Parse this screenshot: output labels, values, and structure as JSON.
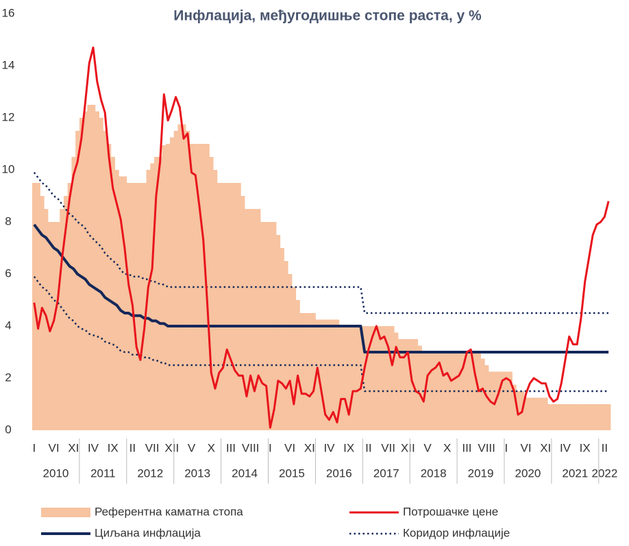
{
  "chart_data": {
    "type": "combo",
    "title": "Инфлација, међугодишње стопе раста, у %",
    "categories": [
      "I",
      null,
      null,
      null,
      null,
      "VI",
      null,
      null,
      null,
      null,
      "XI",
      null,
      null,
      null,
      null,
      "IV",
      null,
      null,
      null,
      null,
      "IX",
      null,
      null,
      null,
      null,
      "II",
      null,
      null,
      null,
      null,
      "VII",
      null,
      null,
      null,
      null,
      "XII",
      null,
      null,
      null,
      null,
      "V",
      null,
      null,
      null,
      null,
      "X",
      null,
      null,
      null,
      null,
      "III",
      null,
      null,
      null,
      null,
      "VIII",
      null,
      null,
      null,
      null,
      "I",
      null,
      null,
      null,
      null,
      "VI",
      null,
      null,
      null,
      null,
      "XI",
      null,
      null,
      null,
      null,
      "IV",
      null,
      null,
      null,
      null,
      "IX",
      null,
      null,
      null,
      null,
      "II",
      null,
      null,
      null,
      null,
      "VII",
      null,
      null,
      null,
      null,
      "XII",
      null,
      null,
      null,
      null,
      "V",
      null,
      null,
      null,
      null,
      "X",
      null,
      null,
      null,
      null,
      "III",
      null,
      null,
      null,
      null,
      "VIII",
      null,
      null,
      null,
      null,
      "I",
      null,
      null,
      null,
      null,
      "VI",
      null,
      null,
      null,
      null,
      "XI",
      null,
      null,
      null,
      null,
      "IV",
      null,
      null,
      null,
      null,
      "IX",
      null,
      null,
      null,
      null,
      "II",
      null
    ],
    "years": [
      "2010",
      "2011",
      "2012",
      "2013",
      "2014",
      "2015",
      "2016",
      "2017",
      "2018",
      "2019",
      "2020",
      "2021",
      "2022"
    ],
    "ylim": [
      0,
      16
    ],
    "yticks": [
      0,
      2,
      4,
      6,
      8,
      10,
      12,
      14,
      16
    ],
    "series": [
      {
        "name": "Референтна каматна стопа",
        "kind": "area",
        "color": "#f7c3a0",
        "values": [
          9.5,
          9.5,
          9.0,
          8.5,
          8.0,
          8.0,
          8.0,
          8.5,
          9.0,
          9.5,
          10.5,
          11.5,
          12.0,
          12.25,
          12.5,
          12.5,
          12.25,
          12.0,
          11.5,
          11.0,
          10.5,
          10.0,
          9.75,
          9.75,
          9.5,
          9.5,
          9.5,
          9.5,
          9.5,
          10.0,
          10.25,
          10.5,
          10.5,
          10.95,
          11.0,
          11.25,
          11.5,
          11.75,
          11.75,
          11.5,
          11.0,
          11.0,
          11.0,
          11.0,
          11.0,
          10.5,
          10.0,
          9.5,
          9.5,
          9.5,
          9.5,
          9.5,
          9.5,
          9.0,
          8.5,
          8.5,
          8.5,
          8.5,
          8.0,
          8.0,
          8.0,
          8.0,
          7.5,
          7.0,
          6.5,
          6.0,
          5.5,
          5.0,
          4.5,
          4.5,
          4.5,
          4.5,
          4.25,
          4.25,
          4.25,
          4.25,
          4.25,
          4.25,
          4.0,
          4.0,
          4.0,
          4.0,
          4.0,
          4.0,
          4.0,
          4.0,
          4.0,
          4.0,
          4.0,
          4.0,
          4.0,
          4.0,
          3.75,
          3.5,
          3.5,
          3.5,
          3.5,
          3.5,
          3.25,
          3.0,
          3.0,
          3.0,
          3.0,
          3.0,
          3.0,
          3.0,
          3.0,
          3.0,
          3.0,
          3.0,
          3.0,
          3.0,
          3.0,
          3.0,
          2.75,
          2.5,
          2.25,
          2.25,
          2.25,
          2.25,
          2.25,
          2.25,
          1.75,
          1.5,
          1.5,
          1.25,
          1.25,
          1.25,
          1.25,
          1.25,
          1.25,
          1.0,
          1.0,
          1.0,
          1.0,
          1.0,
          1.0,
          1.0,
          1.0,
          1.0,
          1.0,
          1.0,
          1.0,
          1.0,
          1.0,
          1.0,
          1.0
        ]
      },
      {
        "name": "Потрошачке цене",
        "kind": "line",
        "color": "#e8141c",
        "values": [
          4.9,
          3.9,
          4.7,
          4.4,
          3.8,
          4.2,
          5.0,
          6.5,
          7.7,
          8.9,
          9.8,
          10.3,
          11.2,
          12.6,
          14.1,
          14.7,
          13.4,
          12.7,
          12.2,
          10.5,
          9.3,
          8.7,
          8.1,
          7.0,
          5.6,
          4.8,
          3.2,
          2.7,
          3.9,
          5.5,
          6.2,
          9.0,
          10.3,
          12.9,
          11.9,
          12.3,
          12.8,
          12.4,
          11.2,
          11.4,
          9.9,
          9.8,
          8.6,
          7.3,
          4.9,
          2.2,
          1.6,
          2.2,
          2.4,
          3.1,
          2.7,
          2.3,
          2.1,
          2.1,
          1.3,
          2.1,
          1.5,
          2.1,
          1.8,
          1.7,
          0.1,
          0.8,
          1.9,
          1.8,
          1.6,
          1.9,
          1.0,
          2.1,
          1.4,
          1.4,
          1.3,
          1.5,
          2.4,
          1.5,
          0.6,
          0.4,
          0.7,
          0.3,
          1.2,
          1.2,
          0.6,
          1.5,
          1.5,
          1.6,
          2.4,
          3.1,
          3.6,
          4.0,
          3.5,
          3.6,
          3.2,
          2.5,
          3.2,
          2.8,
          2.8,
          3.0,
          1.9,
          1.5,
          1.4,
          1.1,
          2.1,
          2.3,
          2.4,
          2.6,
          2.1,
          2.2,
          1.9,
          2.0,
          2.1,
          2.4,
          3.0,
          3.1,
          2.2,
          1.5,
          1.6,
          1.3,
          1.1,
          1.0,
          1.4,
          1.9,
          2.0,
          1.9,
          1.5,
          0.6,
          0.7,
          1.4,
          1.8,
          2.0,
          1.9,
          1.8,
          1.8,
          1.3,
          1.1,
          1.2,
          1.8,
          2.7,
          3.6,
          3.3,
          3.3,
          4.3,
          5.7,
          6.6,
          7.5,
          7.9,
          8.0,
          8.2,
          8.8
        ]
      },
      {
        "name": "Циљана инфлација",
        "kind": "line",
        "color": "#14285a",
        "values": [
          7.9,
          7.7,
          7.5,
          7.4,
          7.2,
          7.0,
          6.9,
          6.7,
          6.5,
          6.3,
          6.2,
          6.0,
          5.9,
          5.8,
          5.6,
          5.5,
          5.4,
          5.3,
          5.1,
          5.0,
          4.9,
          4.8,
          4.6,
          4.5,
          4.5,
          4.4,
          4.4,
          4.4,
          4.3,
          4.3,
          4.2,
          4.2,
          4.1,
          4.1,
          4.0,
          4.0,
          4,
          4,
          4,
          4,
          4,
          4,
          4,
          4,
          4,
          4,
          4,
          4,
          4,
          4,
          4,
          4,
          4,
          4,
          4,
          4,
          4,
          4,
          4,
          4,
          4,
          4,
          4,
          4,
          4,
          4,
          4,
          4,
          4,
          4,
          4,
          4,
          4,
          4,
          4,
          4,
          4,
          4,
          4,
          4,
          4,
          4,
          4,
          4,
          3,
          3,
          3,
          3,
          3,
          3,
          3,
          3,
          3,
          3,
          3,
          3,
          3,
          3,
          3,
          3,
          3,
          3,
          3,
          3,
          3,
          3,
          3,
          3,
          3,
          3,
          3,
          3,
          3,
          3,
          3,
          3,
          3,
          3,
          3,
          3,
          3,
          3,
          3,
          3,
          3,
          3,
          3,
          3,
          3,
          3,
          3,
          3,
          3,
          3,
          3,
          3,
          3,
          3,
          3,
          3,
          3,
          3,
          3,
          3,
          3,
          3,
          3
        ]
      },
      {
        "name": "Коридор инфлације",
        "kind": "corridor",
        "color": "#14285a",
        "upper": [
          9.9,
          9.7,
          9.5,
          9.4,
          9.2,
          9.0,
          8.9,
          8.7,
          8.5,
          8.3,
          8.2,
          8.0,
          7.9,
          7.75,
          7.5,
          7.35,
          7.2,
          7.05,
          6.8,
          6.65,
          6.5,
          6.4,
          6.15,
          6.0,
          6.0,
          5.9,
          5.9,
          5.9,
          5.8,
          5.8,
          5.7,
          5.7,
          5.6,
          5.6,
          5.5,
          5.5,
          5.5,
          5.5,
          5.5,
          5.5,
          5.5,
          5.5,
          5.5,
          5.5,
          5.5,
          5.5,
          5.5,
          5.5,
          5.5,
          5.5,
          5.5,
          5.5,
          5.5,
          5.5,
          5.5,
          5.5,
          5.5,
          5.5,
          5.5,
          5.5,
          5.5,
          5.5,
          5.5,
          5.5,
          5.5,
          5.5,
          5.5,
          5.5,
          5.5,
          5.5,
          5.5,
          5.5,
          5.5,
          5.5,
          5.5,
          5.5,
          5.5,
          5.5,
          5.5,
          5.5,
          5.5,
          5.5,
          5.5,
          5.5,
          4.5,
          4.5,
          4.5,
          4.5,
          4.5,
          4.5,
          4.5,
          4.5,
          4.5,
          4.5,
          4.5,
          4.5,
          4.5,
          4.5,
          4.5,
          4.5,
          4.5,
          4.5,
          4.5,
          4.5,
          4.5,
          4.5,
          4.5,
          4.5,
          4.5,
          4.5,
          4.5,
          4.5,
          4.5,
          4.5,
          4.5,
          4.5,
          4.5,
          4.5,
          4.5,
          4.5,
          4.5,
          4.5,
          4.5,
          4.5,
          4.5,
          4.5,
          4.5,
          4.5,
          4.5,
          4.5,
          4.5,
          4.5,
          4.5,
          4.5,
          4.5,
          4.5,
          4.5,
          4.5,
          4.5,
          4.5,
          4.5,
          4.5,
          4.5,
          4.5,
          4.5,
          4.5,
          4.5
        ],
        "lower": [
          5.9,
          5.7,
          5.5,
          5.4,
          5.2,
          5.0,
          4.9,
          4.7,
          4.5,
          4.3,
          4.2,
          4.0,
          3.9,
          3.85,
          3.7,
          3.65,
          3.6,
          3.55,
          3.4,
          3.35,
          3.3,
          3.2,
          3.05,
          3.0,
          3.0,
          2.9,
          2.9,
          2.9,
          2.8,
          2.8,
          2.7,
          2.7,
          2.6,
          2.6,
          2.5,
          2.5,
          2.5,
          2.5,
          2.5,
          2.5,
          2.5,
          2.5,
          2.5,
          2.5,
          2.5,
          2.5,
          2.5,
          2.5,
          2.5,
          2.5,
          2.5,
          2.5,
          2.5,
          2.5,
          2.5,
          2.5,
          2.5,
          2.5,
          2.5,
          2.5,
          2.5,
          2.5,
          2.5,
          2.5,
          2.5,
          2.5,
          2.5,
          2.5,
          2.5,
          2.5,
          2.5,
          2.5,
          2.5,
          2.5,
          2.5,
          2.5,
          2.5,
          2.5,
          2.5,
          2.5,
          2.5,
          2.5,
          2.5,
          2.5,
          1.5,
          1.5,
          1.5,
          1.5,
          1.5,
          1.5,
          1.5,
          1.5,
          1.5,
          1.5,
          1.5,
          1.5,
          1.5,
          1.5,
          1.5,
          1.5,
          1.5,
          1.5,
          1.5,
          1.5,
          1.5,
          1.5,
          1.5,
          1.5,
          1.5,
          1.5,
          1.5,
          1.5,
          1.5,
          1.5,
          1.5,
          1.5,
          1.5,
          1.5,
          1.5,
          1.5,
          1.5,
          1.5,
          1.5,
          1.5,
          1.5,
          1.5,
          1.5,
          1.5,
          1.5,
          1.5,
          1.5,
          1.5,
          1.5,
          1.5,
          1.5,
          1.5,
          1.5,
          1.5,
          1.5,
          1.5,
          1.5,
          1.5,
          1.5,
          1.5,
          1.5,
          1.5,
          1.5
        ]
      }
    ]
  }
}
